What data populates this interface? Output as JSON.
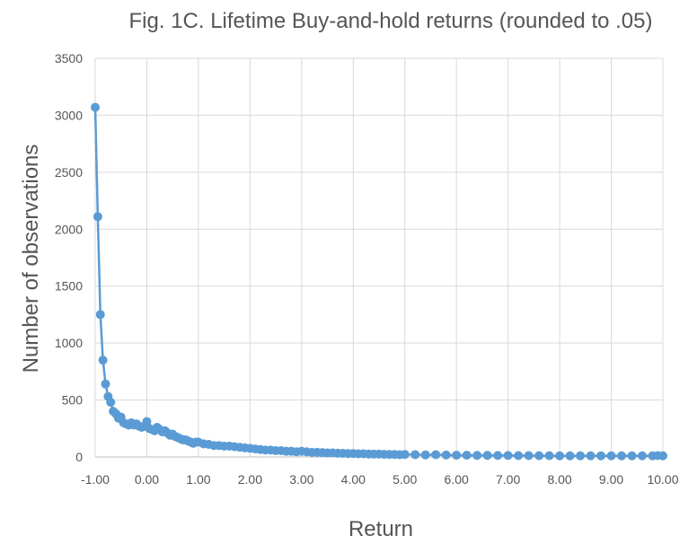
{
  "chart_data": {
    "type": "line",
    "title": "Fig. 1C. Lifetime Buy-and-hold returns (rounded to .05)",
    "xlabel": "Return",
    "ylabel": "Number of observations",
    "xlim": [
      -1.0,
      10.0
    ],
    "ylim": [
      0,
      3500
    ],
    "xticks": [
      "-1.00",
      "0.00",
      "1.00",
      "2.00",
      "3.00",
      "4.00",
      "5.00",
      "6.00",
      "7.00",
      "8.00",
      "9.00",
      "10.00"
    ],
    "yticks": [
      "0",
      "500",
      "1000",
      "1500",
      "2000",
      "2500",
      "3000",
      "3500"
    ],
    "grid": true,
    "series_color": "#5B9BD5",
    "series": [
      {
        "x": [
          -1.0,
          -0.95,
          -0.9,
          -0.85,
          -0.8,
          -0.75,
          -0.7,
          -0.65,
          -0.6,
          -0.55,
          -0.5,
          -0.45,
          -0.4,
          -0.35,
          -0.3,
          -0.25,
          -0.2,
          -0.15,
          -0.1,
          -0.05,
          0.0,
          0.05,
          0.1,
          0.15,
          0.2,
          0.25,
          0.3,
          0.35,
          0.4,
          0.45,
          0.5,
          0.55,
          0.6,
          0.65,
          0.7,
          0.75,
          0.8,
          0.85,
          0.9,
          0.95,
          1.0,
          1.1,
          1.2,
          1.3,
          1.4,
          1.5,
          1.6,
          1.7,
          1.8,
          1.9,
          2.0,
          2.1,
          2.2,
          2.3,
          2.4,
          2.5,
          2.6,
          2.7,
          2.8,
          2.9,
          3.0,
          3.1,
          3.2,
          3.3,
          3.4,
          3.5,
          3.6,
          3.7,
          3.8,
          3.9,
          4.0,
          4.1,
          4.2,
          4.3,
          4.4,
          4.5,
          4.6,
          4.7,
          4.8,
          4.9,
          5.0,
          5.2,
          5.4,
          5.6,
          5.8,
          6.0,
          6.2,
          6.4,
          6.6,
          6.8,
          7.0,
          7.2,
          7.4,
          7.6,
          7.8,
          8.0,
          8.2,
          8.4,
          8.6,
          8.8,
          9.0,
          9.2,
          9.4,
          9.6,
          9.8,
          9.9,
          10.0
        ],
        "y": [
          3070,
          2110,
          1250,
          850,
          640,
          530,
          480,
          400,
          380,
          340,
          350,
          300,
          290,
          280,
          300,
          280,
          290,
          270,
          260,
          270,
          310,
          250,
          240,
          230,
          260,
          240,
          220,
          230,
          210,
          190,
          200,
          180,
          170,
          160,
          150,
          150,
          140,
          130,
          120,
          130,
          130,
          115,
          110,
          100,
          100,
          95,
          95,
          90,
          85,
          80,
          75,
          70,
          65,
          60,
          60,
          55,
          55,
          50,
          50,
          45,
          50,
          45,
          40,
          40,
          38,
          35,
          35,
          33,
          32,
          30,
          30,
          28,
          28,
          26,
          25,
          25,
          23,
          22,
          22,
          20,
          22,
          20,
          18,
          20,
          17,
          15,
          15,
          14,
          14,
          13,
          13,
          12,
          12,
          11,
          11,
          10,
          10,
          10,
          10,
          10,
          10,
          10,
          10,
          10,
          10,
          12,
          10
        ]
      }
    ]
  }
}
